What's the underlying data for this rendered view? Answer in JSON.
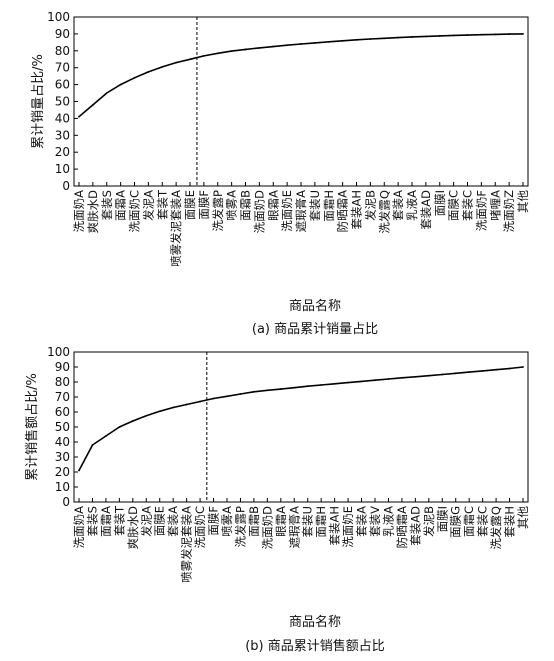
{
  "chart_data": [
    {
      "type": "line",
      "caption": "(a) 商品累计销量占比",
      "xlabel": "商品名称",
      "ylabel": "累计销量占比/%",
      "ylim": [
        0,
        100
      ],
      "yticks": [
        0,
        10,
        20,
        30,
        40,
        50,
        60,
        70,
        80,
        90,
        100
      ],
      "categories": [
        "洗面奶A",
        "爽肤水D",
        "套装S",
        "面霜A",
        "洗面奶C",
        "发泥A",
        "套装T",
        "喷雾发泥套装A",
        "面膜E",
        "面膜F",
        "洗发露P",
        "喷雾A",
        "面霜B",
        "洗面奶D",
        "眼霜A",
        "洗面奶E",
        "遮瑕膏A",
        "套装U",
        "面霜H",
        "防晒霜A",
        "套装AH",
        "发泥B",
        "洗发露Q",
        "套装A",
        "乳液A",
        "套装AD",
        "面膜I",
        "面膜C",
        "套装C",
        "洗面奶F",
        "啫喱A",
        "洗面奶Z",
        "其他"
      ],
      "values": [
        41.0,
        48.0,
        55.0,
        60.0,
        64.0,
        67.5,
        70.5,
        73.0,
        75.0,
        77.0,
        78.5,
        79.8,
        80.8,
        81.7,
        82.5,
        83.3,
        84.0,
        84.7,
        85.3,
        85.9,
        86.5,
        87.0,
        87.4,
        87.8,
        88.2,
        88.5,
        88.8,
        89.1,
        89.3,
        89.5,
        89.7,
        89.9,
        90.0
      ],
      "divider_after_category": "面膜E"
    },
    {
      "type": "line",
      "caption": "(b) 商品累计销售额占比",
      "xlabel": "商品名称",
      "ylabel": "累计销售额占比/%",
      "ylim": [
        0,
        100
      ],
      "yticks": [
        0,
        10,
        20,
        30,
        40,
        50,
        60,
        70,
        80,
        90,
        100
      ],
      "categories": [
        "洗面奶A",
        "套装S",
        "面霜A",
        "套装T",
        "爽肤水D",
        "发泥A",
        "面膜E",
        "套装A",
        "喷雾发泥套装A",
        "洗面奶C",
        "面膜F",
        "喷雾A",
        "洗发露P",
        "面霜B",
        "洗面奶D",
        "眼霜A",
        "遮瑕膏A",
        "套装U",
        "面霜H",
        "套装AH",
        "洗面奶E",
        "套装A",
        "套装V",
        "乳液A",
        "防晒霜A",
        "套装AD",
        "发泥B",
        "面膜I",
        "面膜G",
        "面霜C",
        "套装C",
        "洗发露Q",
        "套装H",
        "其他"
      ],
      "values": [
        21.0,
        38.0,
        44.0,
        50.0,
        54.0,
        57.5,
        60.5,
        63.0,
        65.0,
        67.0,
        69.0,
        70.5,
        72.0,
        73.5,
        74.5,
        75.3,
        76.2,
        77.2,
        78.0,
        78.8,
        79.6,
        80.4,
        81.2,
        82.0,
        82.8,
        83.5,
        84.2,
        85.0,
        85.8,
        86.6,
        87.4,
        88.2,
        89.0,
        90.0
      ],
      "divider_after_category": "洗面奶C"
    }
  ]
}
